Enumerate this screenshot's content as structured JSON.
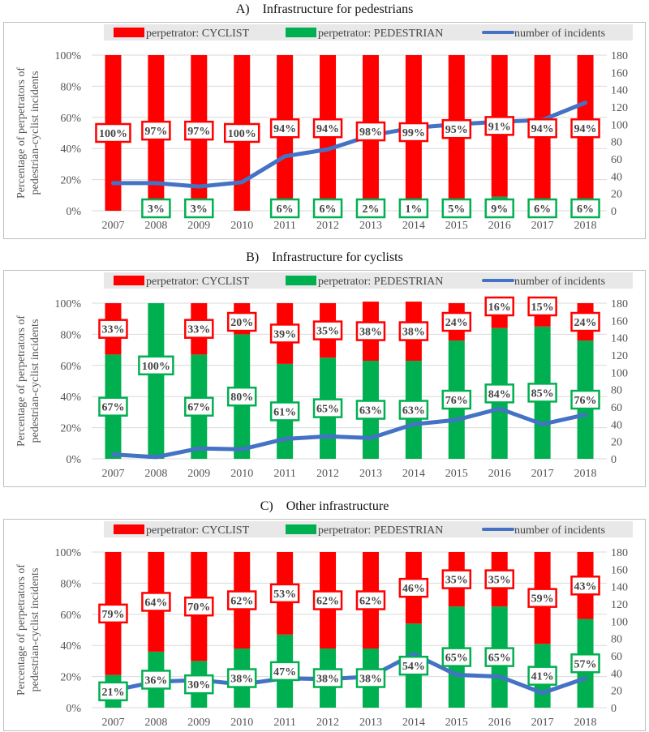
{
  "legend": {
    "cyclist": "perpetrator: CYCLIST",
    "pedestrian": "perpetrator: PEDESTRIAN",
    "incidents": "number of incidents"
  },
  "colors": {
    "cyclist": "#ff0000",
    "pedestrian": "#00b050",
    "incidents": "#4472c4",
    "legend_bg": "#e8e8e8",
    "grid": "#d9d9d9",
    "frame": "#bfbfbf"
  },
  "chart_data": [
    {
      "type": "bar",
      "stacked": true,
      "panel_letter": "A)",
      "title": "Infrastructure for pedestrians",
      "ylabel": "Percentage of perpetrators of pedestrian-cyclist incidents",
      "ylim": [
        0,
        100
      ],
      "y2lim": [
        0,
        180
      ],
      "yticks": [
        "0%",
        "20%",
        "40%",
        "60%",
        "80%",
        "100%"
      ],
      "y2ticks": [
        "0",
        "20",
        "40",
        "60",
        "80",
        "100",
        "120",
        "140",
        "160",
        "180"
      ],
      "categories": [
        "2007",
        "2008",
        "2009",
        "2010",
        "2011",
        "2012",
        "2013",
        "2014",
        "2015",
        "2016",
        "2017",
        "2018"
      ],
      "legend_position": "top",
      "series": [
        {
          "name": "perpetrator: PEDESTRIAN",
          "values": [
            0,
            3,
            3,
            0,
            6,
            6,
            2,
            1,
            5,
            9,
            6,
            6
          ],
          "labels": [
            "",
            "3%",
            "3%",
            "",
            "6%",
            "6%",
            "2%",
            "1%",
            "5%",
            "9%",
            "6%",
            "6%"
          ]
        },
        {
          "name": "perpetrator: CYCLIST",
          "values": [
            100,
            97,
            97,
            100,
            94,
            94,
            98,
            99,
            95,
            91,
            94,
            94
          ],
          "labels": [
            "100%",
            "97%",
            "97%",
            "100%",
            "94%",
            "94%",
            "98%",
            "99%",
            "95%",
            "91%",
            "94%",
            "94%"
          ]
        },
        {
          "name": "number of incidents",
          "type": "line",
          "axis": "secondary",
          "values": [
            32,
            32,
            28,
            33,
            63,
            71,
            87,
            96,
            100,
            103,
            105,
            125
          ]
        }
      ]
    },
    {
      "type": "bar",
      "stacked": true,
      "panel_letter": "B)",
      "title": "Infrastructure for cyclists",
      "ylabel": "Percentage of perpetrators of pedestrian-cyclist incidents",
      "ylim": [
        0,
        100
      ],
      "y2lim": [
        0,
        180
      ],
      "yticks": [
        "0%",
        "20%",
        "40%",
        "60%",
        "80%",
        "100%"
      ],
      "y2ticks": [
        "0",
        "20",
        "40",
        "60",
        "80",
        "100",
        "120",
        "140",
        "160",
        "180"
      ],
      "categories": [
        "2007",
        "2008",
        "2009",
        "2010",
        "2011",
        "2012",
        "2013",
        "2014",
        "2015",
        "2016",
        "2017",
        "2018"
      ],
      "legend_position": "top",
      "series": [
        {
          "name": "perpetrator: PEDESTRIAN",
          "values": [
            67,
            100,
            67,
            80,
            61,
            65,
            63,
            63,
            76,
            84,
            85,
            76
          ],
          "labels": [
            "67%",
            "100%",
            "67%",
            "80%",
            "61%",
            "65%",
            "63%",
            "63%",
            "76%",
            "84%",
            "85%",
            "76%"
          ]
        },
        {
          "name": "perpetrator: CYCLIST",
          "values": [
            33,
            0,
            33,
            20,
            39,
            35,
            38,
            38,
            24,
            16,
            15,
            24
          ],
          "labels": [
            "33%",
            "",
            "33%",
            "20%",
            "39%",
            "35%",
            "38%",
            "38%",
            "24%",
            "16%",
            "15%",
            "24%"
          ]
        },
        {
          "name": "number of incidents",
          "type": "line",
          "axis": "secondary",
          "values": [
            5,
            2,
            12,
            11,
            23,
            26,
            24,
            40,
            45,
            58,
            40,
            51
          ]
        }
      ]
    },
    {
      "type": "bar",
      "stacked": true,
      "panel_letter": "C)",
      "title": "Other infrastructure",
      "ylabel": "Percentage of perpetrators of pedestrian-cyclist incidents",
      "ylim": [
        0,
        100
      ],
      "y2lim": [
        0,
        180
      ],
      "yticks": [
        "0%",
        "20%",
        "40%",
        "60%",
        "80%",
        "100%"
      ],
      "y2ticks": [
        "0",
        "20",
        "40",
        "60",
        "80",
        "100",
        "120",
        "140",
        "160",
        "180"
      ],
      "categories": [
        "2007",
        "2008",
        "2009",
        "2010",
        "2011",
        "2012",
        "2013",
        "2014",
        "2015",
        "2016",
        "2017",
        "2018"
      ],
      "legend_position": "top",
      "series": [
        {
          "name": "perpetrator: PEDESTRIAN",
          "values": [
            21,
            36,
            30,
            38,
            47,
            38,
            38,
            54,
            65,
            65,
            41,
            57
          ],
          "labels": [
            "21%",
            "36%",
            "30%",
            "38%",
            "47%",
            "38%",
            "38%",
            "54%",
            "65%",
            "65%",
            "41%",
            "57%"
          ]
        },
        {
          "name": "perpetrator: CYCLIST",
          "values": [
            79,
            64,
            70,
            62,
            53,
            62,
            62,
            46,
            35,
            35,
            59,
            43
          ],
          "labels": [
            "79%",
            "64%",
            "70%",
            "62%",
            "53%",
            "62%",
            "62%",
            "46%",
            "35%",
            "35%",
            "59%",
            "43%"
          ]
        },
        {
          "name": "number of incidents",
          "type": "line",
          "axis": "secondary",
          "values": [
            20,
            30,
            32,
            27,
            34,
            33,
            36,
            62,
            38,
            36,
            17,
            34
          ]
        }
      ]
    }
  ]
}
